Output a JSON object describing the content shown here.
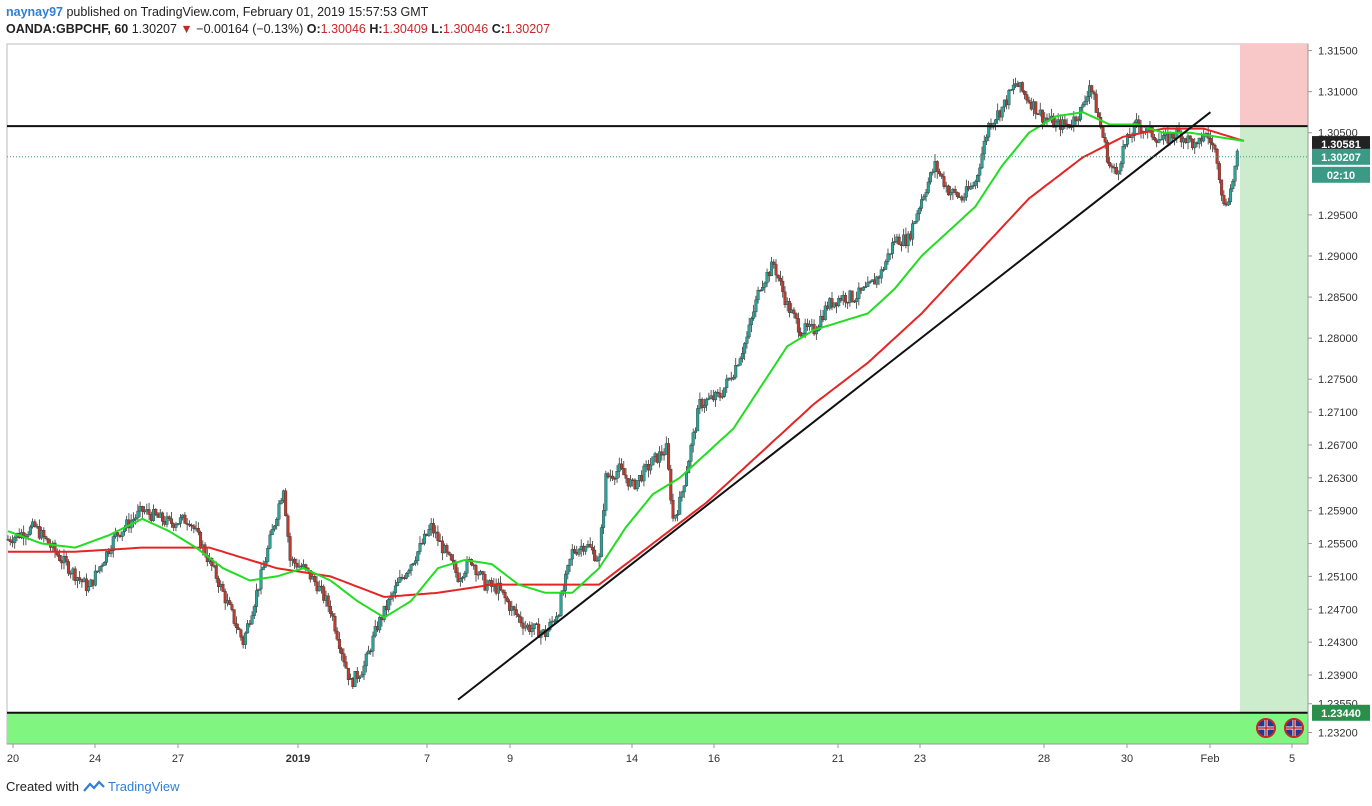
{
  "header": {
    "user": "naynay97",
    "published": "published on TradingView.com, February 01, 2019 15:57:53 GMT",
    "symbol": "OANDA:GBPCHF, 60",
    "last": "1.30207",
    "arrow": "▼",
    "change": "−0.00164 (−0.13%)",
    "o_label": "O:",
    "o_value": "1.30046",
    "h_label": "H:",
    "h_value": "1.30409",
    "l_label": "L:",
    "l_value": "1.30046",
    "c_label": "C:",
    "c_value": "1.30207"
  },
  "footer": {
    "created": "Created with",
    "brand": "TradingView"
  },
  "colors": {
    "bull": "#26a69a",
    "bull_body": "#3aa39a",
    "bear": "#c0392b",
    "ema_fast": "#22dd22",
    "ema_slow": "#e52525",
    "support_zone": "#80f580",
    "target_zone": "#cdeccd",
    "stop_zone": "#f8c8c8",
    "tag_dark": "#222222",
    "tag_green": "#2a8f4a",
    "tag_teal": "#3a9a86"
  },
  "price_tags": {
    "resistance": "1.30581",
    "current": "1.30207",
    "countdown": "02:10",
    "support": "1.23440"
  },
  "chart_data": {
    "type": "candlestick",
    "symbol": "GBPCHF",
    "timeframe": "60",
    "y_ticks": [
      "1.31500",
      "1.31000",
      "1.30500",
      "1.29500",
      "1.29000",
      "1.28500",
      "1.28000",
      "1.27500",
      "1.27100",
      "1.26700",
      "1.26300",
      "1.25900",
      "1.25500",
      "1.25100",
      "1.24700",
      "1.24300",
      "1.23900",
      "1.23550",
      "1.23200"
    ],
    "x_ticks": [
      "20",
      "24",
      "27",
      "2019",
      "7",
      "9",
      "14",
      "16",
      "21",
      "23",
      "28",
      "30",
      "Feb",
      "5"
    ],
    "ylim": [
      1.2306,
      1.3158
    ],
    "levels": {
      "resistance": 1.30581,
      "current": 1.30207,
      "support": 1.2344
    },
    "price_path": [
      [
        0,
        1.2555
      ],
      [
        4,
        1.257
      ],
      [
        8,
        1.253
      ],
      [
        12,
        1.2495
      ],
      [
        16,
        1.256
      ],
      [
        20,
        1.259
      ],
      [
        24,
        1.2575
      ],
      [
        27,
        1.258
      ],
      [
        29,
        1.2545
      ],
      [
        31,
        1.251
      ],
      [
        33,
        1.247
      ],
      [
        35,
        1.243
      ],
      [
        38,
        1.252
      ],
      [
        41,
        1.262
      ],
      [
        42,
        1.253
      ],
      [
        44,
        1.252
      ],
      [
        46,
        1.25
      ],
      [
        48,
        1.247
      ],
      [
        51,
        1.238
      ],
      [
        53,
        1.24
      ],
      [
        55,
        1.245
      ],
      [
        58,
        1.25
      ],
      [
        61,
        1.254
      ],
      [
        63,
        1.257
      ],
      [
        65,
        1.254
      ],
      [
        67,
        1.251
      ],
      [
        69,
        1.253
      ],
      [
        71,
        1.25
      ],
      [
        73,
        1.2495
      ],
      [
        75,
        1.247
      ],
      [
        77,
        1.245
      ],
      [
        80,
        1.244
      ],
      [
        82,
        1.247
      ],
      [
        84,
        1.254
      ],
      [
        86,
        1.255
      ],
      [
        88,
        1.253
      ],
      [
        89,
        1.263
      ],
      [
        91,
        1.264
      ],
      [
        93,
        1.262
      ],
      [
        96,
        1.265
      ],
      [
        98,
        1.2665
      ],
      [
        99,
        1.258
      ],
      [
        100,
        1.26
      ],
      [
        103,
        1.272
      ],
      [
        106,
        1.273
      ],
      [
        108,
        1.276
      ],
      [
        110,
        1.28
      ],
      [
        112,
        1.2865
      ],
      [
        114,
        1.289
      ],
      [
        116,
        1.284
      ],
      [
        118,
        1.281
      ],
      [
        120,
        1.281
      ],
      [
        122,
        1.284
      ],
      [
        124,
        1.285
      ],
      [
        126,
        1.285
      ],
      [
        128,
        1.286
      ],
      [
        130,
        1.288
      ],
      [
        132,
        1.292
      ],
      [
        134,
        1.292
      ],
      [
        136,
        1.297
      ],
      [
        138,
        1.301
      ],
      [
        140,
        1.298
      ],
      [
        142,
        1.297
      ],
      [
        144,
        1.299
      ],
      [
        146,
        1.306
      ],
      [
        148,
        1.308
      ],
      [
        150,
        1.311
      ],
      [
        152,
        1.309
      ],
      [
        154,
        1.307
      ],
      [
        156,
        1.306
      ],
      [
        158,
        1.306
      ],
      [
        160,
        1.308
      ],
      [
        161,
        1.311
      ],
      [
        162,
        1.308
      ],
      [
        164,
        1.301
      ],
      [
        165,
        1.3
      ],
      [
        166,
        1.303
      ],
      [
        168,
        1.306
      ],
      [
        170,
        1.305
      ],
      [
        172,
        1.304
      ],
      [
        174,
        1.305
      ],
      [
        176,
        1.304
      ],
      [
        177,
        1.303
      ],
      [
        178,
        1.305
      ],
      [
        179,
        1.304
      ],
      [
        180,
        1.302
      ],
      [
        181,
        1.296
      ],
      [
        182,
        1.298
      ],
      [
        183,
        1.302
      ]
    ],
    "ema_fast_path": [
      [
        0,
        1.2565
      ],
      [
        5,
        1.255
      ],
      [
        10,
        1.2545
      ],
      [
        15,
        1.256
      ],
      [
        20,
        1.258
      ],
      [
        24,
        1.2565
      ],
      [
        28,
        1.2545
      ],
      [
        32,
        1.252
      ],
      [
        36,
        1.2505
      ],
      [
        40,
        1.251
      ],
      [
        44,
        1.252
      ],
      [
        48,
        1.2505
      ],
      [
        52,
        1.248
      ],
      [
        56,
        1.246
      ],
      [
        60,
        1.248
      ],
      [
        64,
        1.252
      ],
      [
        68,
        1.253
      ],
      [
        72,
        1.2525
      ],
      [
        76,
        1.25
      ],
      [
        80,
        1.249
      ],
      [
        84,
        1.249
      ],
      [
        88,
        1.252
      ],
      [
        92,
        1.257
      ],
      [
        96,
        1.261
      ],
      [
        100,
        1.263
      ],
      [
        104,
        1.266
      ],
      [
        108,
        1.269
      ],
      [
        112,
        1.274
      ],
      [
        116,
        1.279
      ],
      [
        120,
        1.281
      ],
      [
        124,
        1.282
      ],
      [
        128,
        1.283
      ],
      [
        132,
        1.286
      ],
      [
        136,
        1.29
      ],
      [
        140,
        1.293
      ],
      [
        144,
        1.296
      ],
      [
        148,
        1.301
      ],
      [
        152,
        1.305
      ],
      [
        156,
        1.307
      ],
      [
        160,
        1.3075
      ],
      [
        164,
        1.306
      ],
      [
        168,
        1.306
      ],
      [
        172,
        1.305
      ],
      [
        176,
        1.305
      ],
      [
        180,
        1.3045
      ],
      [
        184,
        1.304
      ]
    ],
    "ema_slow_path": [
      [
        0,
        1.254
      ],
      [
        10,
        1.254
      ],
      [
        20,
        1.2545
      ],
      [
        30,
        1.2545
      ],
      [
        40,
        1.252
      ],
      [
        48,
        1.251
      ],
      [
        56,
        1.2485
      ],
      [
        64,
        1.249
      ],
      [
        72,
        1.25
      ],
      [
        80,
        1.25
      ],
      [
        88,
        1.25
      ],
      [
        96,
        1.255
      ],
      [
        104,
        1.26
      ],
      [
        112,
        1.266
      ],
      [
        120,
        1.272
      ],
      [
        128,
        1.277
      ],
      [
        136,
        1.283
      ],
      [
        144,
        1.29
      ],
      [
        152,
        1.297
      ],
      [
        160,
        1.302
      ],
      [
        166,
        1.3045
      ],
      [
        172,
        1.3055
      ],
      [
        178,
        1.3055
      ],
      [
        184,
        1.304
      ]
    ],
    "trendline": [
      [
        67,
        1.236
      ],
      [
        179,
        1.3075
      ]
    ],
    "position_zone": {
      "entry": 1.30581,
      "stop": 1.3158,
      "target": 1.2344
    }
  }
}
